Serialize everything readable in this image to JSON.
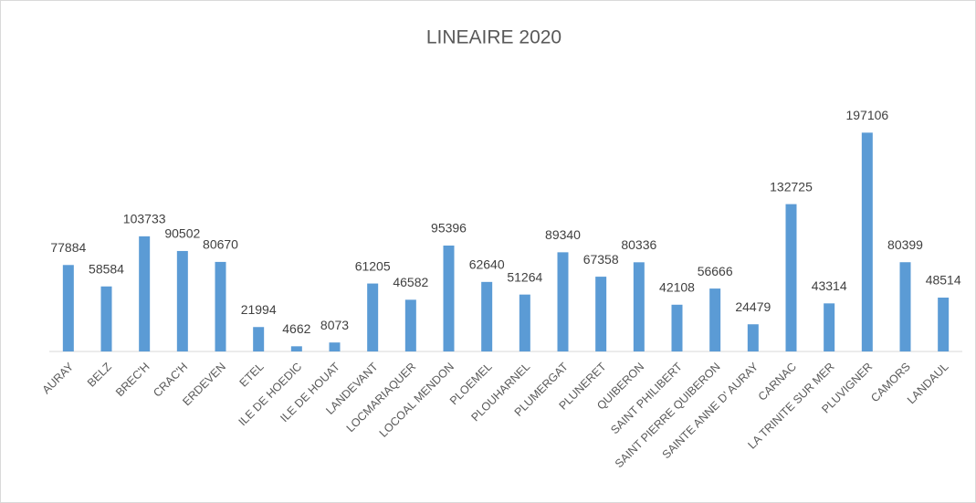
{
  "chart_data": {
    "type": "bar",
    "title": "LINEAIRE 2020",
    "categories": [
      "AURAY",
      "BELZ",
      "BREC'H",
      "CRAC'H",
      "ERDEVEN",
      "ETEL",
      "ILE DE HOEDIC",
      "ILE DE HOUAT",
      "LANDEVANT",
      "LOCMARIAQUER",
      "LOCOAL MENDON",
      "PLOEMEL",
      "PLOUHARNEL",
      "PLUMERGAT",
      "PLUNERET",
      "QUIBERON",
      "SAINT PHILIBERT",
      "SAINT PIERRE QUIBERON",
      "SAINTE ANNE D' AURAY",
      "CARNAC",
      "LA TRINITE SUR MER",
      "PLUVIGNER",
      "CAMORS",
      "LANDAUL"
    ],
    "values": [
      77884,
      58584,
      103733,
      90502,
      80670,
      21994,
      4662,
      8073,
      61205,
      46582,
      95396,
      62640,
      51264,
      89340,
      67358,
      80336,
      42108,
      56666,
      24479,
      132725,
      43314,
      197106,
      80399,
      48514
    ],
    "color": "#5b9bd5",
    "ylim": [
      0,
      250000
    ]
  }
}
